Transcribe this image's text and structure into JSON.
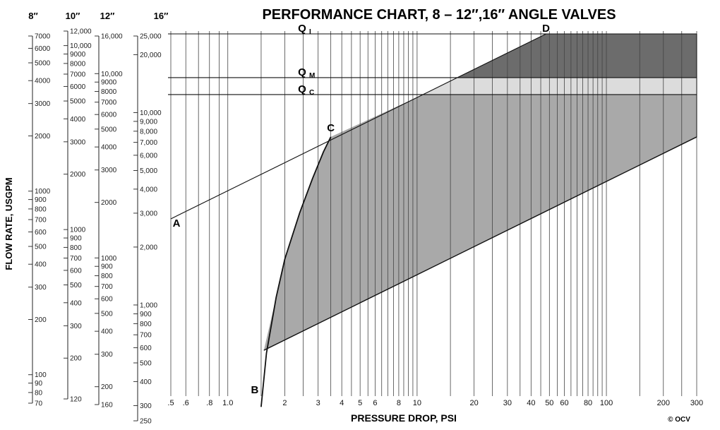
{
  "chart_data": {
    "type": "area",
    "title": "PERFORMANCE CHART, 8 – 12″,16″ ANGLE VALVES",
    "xlabel": "PRESSURE DROP, PSI",
    "ylabel": "FLOW RATE, USGPM",
    "x_scale": "log",
    "xlim": [
      0.5,
      300
    ],
    "x_ticks": [
      {
        "value": 0.5,
        "label": ".5"
      },
      {
        "value": 0.6,
        "label": ".6"
      },
      {
        "value": 0.8,
        "label": ".8"
      },
      {
        "value": 1.0,
        "label": "1.0"
      },
      {
        "value": 2,
        "label": "2"
      },
      {
        "value": 3,
        "label": "3"
      },
      {
        "value": 4,
        "label": "4"
      },
      {
        "value": 5,
        "label": "5"
      },
      {
        "value": 6,
        "label": "6"
      },
      {
        "value": 8,
        "label": "8"
      },
      {
        "value": 10,
        "label": "10"
      },
      {
        "value": 20,
        "label": "20"
      },
      {
        "value": 30,
        "label": "30"
      },
      {
        "value": 40,
        "label": "40"
      },
      {
        "value": 50,
        "label": "50"
      },
      {
        "value": 60,
        "label": "60"
      },
      {
        "value": 80,
        "label": "80"
      },
      {
        "value": 100,
        "label": "100"
      },
      {
        "value": 200,
        "label": "200"
      },
      {
        "value": 300,
        "label": "300"
      }
    ],
    "y_scales": [
      {
        "name": "8″",
        "range": [
          70,
          7000
        ],
        "ticks": [
          {
            "value": 7000,
            "label": "7000"
          },
          {
            "value": 6000,
            "label": "6000"
          },
          {
            "value": 5000,
            "label": "5000"
          },
          {
            "value": 4000,
            "label": "4000"
          },
          {
            "value": 3000,
            "label": "3000"
          },
          {
            "value": 2000,
            "label": "2000"
          },
          {
            "value": 1000,
            "label": "1000"
          },
          {
            "value": 900,
            "label": "900"
          },
          {
            "value": 800,
            "label": "800"
          },
          {
            "value": 700,
            "label": "700"
          },
          {
            "value": 600,
            "label": "600"
          },
          {
            "value": 500,
            "label": "500"
          },
          {
            "value": 400,
            "label": "400"
          },
          {
            "value": 300,
            "label": "300"
          },
          {
            "value": 200,
            "label": "200"
          },
          {
            "value": 100,
            "label": "100"
          },
          {
            "value": 90,
            "label": "90"
          },
          {
            "value": 80,
            "label": "80"
          },
          {
            "value": 70,
            "label": "70"
          }
        ]
      },
      {
        "name": "10″",
        "range": [
          120,
          12000
        ],
        "ticks": [
          {
            "value": 12000,
            "label": "12,000"
          },
          {
            "value": 10000,
            "label": "10,000"
          },
          {
            "value": 9000,
            "label": "9000"
          },
          {
            "value": 8000,
            "label": "8000"
          },
          {
            "value": 7000,
            "label": "7000"
          },
          {
            "value": 6000,
            "label": "6000"
          },
          {
            "value": 5000,
            "label": "5000"
          },
          {
            "value": 4000,
            "label": "4000"
          },
          {
            "value": 3000,
            "label": "3000"
          },
          {
            "value": 2000,
            "label": "2000"
          },
          {
            "value": 1000,
            "label": "1000"
          },
          {
            "value": 900,
            "label": "900"
          },
          {
            "value": 800,
            "label": "800"
          },
          {
            "value": 700,
            "label": "700"
          },
          {
            "value": 600,
            "label": "600"
          },
          {
            "value": 500,
            "label": "500"
          },
          {
            "value": 400,
            "label": "400"
          },
          {
            "value": 300,
            "label": "300"
          },
          {
            "value": 200,
            "label": "200"
          },
          {
            "value": 120,
            "label": "120"
          }
        ]
      },
      {
        "name": "12″",
        "range": [
          160,
          16000
        ],
        "ticks": [
          {
            "value": 16000,
            "label": "16,000"
          },
          {
            "value": 10000,
            "label": "10,000"
          },
          {
            "value": 9000,
            "label": "9000"
          },
          {
            "value": 8000,
            "label": "8000"
          },
          {
            "value": 7000,
            "label": "7000"
          },
          {
            "value": 6000,
            "label": "6000"
          },
          {
            "value": 5000,
            "label": "5000"
          },
          {
            "value": 4000,
            "label": "4000"
          },
          {
            "value": 3000,
            "label": "3000"
          },
          {
            "value": 2000,
            "label": "2000"
          },
          {
            "value": 1000,
            "label": "1000"
          },
          {
            "value": 900,
            "label": "900"
          },
          {
            "value": 800,
            "label": "800"
          },
          {
            "value": 700,
            "label": "700"
          },
          {
            "value": 600,
            "label": "600"
          },
          {
            "value": 500,
            "label": "500"
          },
          {
            "value": 400,
            "label": "400"
          },
          {
            "value": 300,
            "label": "300"
          },
          {
            "value": 200,
            "label": "200"
          },
          {
            "value": 160,
            "label": "160"
          }
        ]
      },
      {
        "name": "16″",
        "range": [
          250,
          25000
        ],
        "ticks": [
          {
            "value": 25000,
            "label": "25,000"
          },
          {
            "value": 20000,
            "label": "20,000"
          },
          {
            "value": 10000,
            "label": "10,000"
          },
          {
            "value": 9000,
            "label": "9,000"
          },
          {
            "value": 8000,
            "label": "8,000"
          },
          {
            "value": 7000,
            "label": "7,000"
          },
          {
            "value": 6000,
            "label": "6,000"
          },
          {
            "value": 5000,
            "label": "5,000"
          },
          {
            "value": 4000,
            "label": "4,000"
          },
          {
            "value": 3000,
            "label": "3,000"
          },
          {
            "value": 2000,
            "label": "2,000"
          },
          {
            "value": 1000,
            "label": "1,000"
          },
          {
            "value": 900,
            "label": "900"
          },
          {
            "value": 800,
            "label": "800"
          },
          {
            "value": 700,
            "label": "700"
          },
          {
            "value": 600,
            "label": "600"
          },
          {
            "value": 500,
            "label": "500"
          },
          {
            "value": 400,
            "label": "400"
          },
          {
            "value": 300,
            "label": "300"
          },
          {
            "value": 250,
            "label": "250"
          }
        ]
      }
    ],
    "flow_lines": [
      {
        "label": "Q",
        "sub": "I",
        "flow_16": 25000
      },
      {
        "label": "Q",
        "sub": "M",
        "flow_16": 15000
      },
      {
        "label": "Q",
        "sub": "C",
        "flow_16": 12300
      }
    ],
    "points": [
      {
        "label": "A",
        "x": 0.5,
        "flow_16": 2880
      },
      {
        "label": "B",
        "x": 1.5,
        "flow_16": 320
      },
      {
        "label": "C",
        "x": 3.5,
        "flow_16": 7500
      },
      {
        "label": "D",
        "x": 48,
        "flow_16": 25000
      }
    ],
    "lines": {
      "A_to_D": [
        [
          0.5,
          2880
        ],
        [
          48,
          25000
        ]
      ],
      "lower_bound": [
        [
          1.55,
          620
        ],
        [
          300,
          7500
        ]
      ],
      "curve_B_to_C": [
        [
          1.5,
          320
        ],
        [
          1.6,
          600
        ],
        [
          1.8,
          1150
        ],
        [
          2.0,
          1800
        ],
        [
          2.4,
          3100
        ],
        [
          2.8,
          4600
        ],
        [
          3.2,
          6300
        ],
        [
          3.5,
          7500
        ]
      ]
    },
    "regions": [
      {
        "name": "operating",
        "color": "#a9a9a9"
      },
      {
        "name": "between Q_M and Q_C",
        "color": "#dcdcdc"
      },
      {
        "name": "above Q_M",
        "color": "#6c6c6c"
      }
    ],
    "copyright": "© OCV"
  }
}
